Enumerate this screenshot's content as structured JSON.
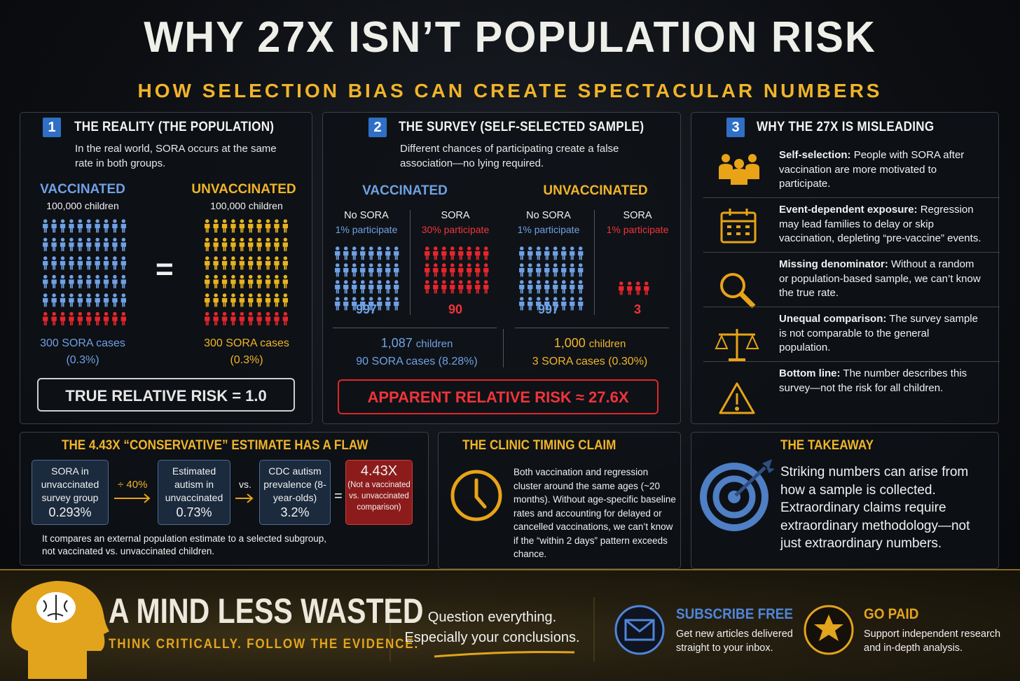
{
  "header": {
    "title": "WHY 27X ISN’T POPULATION RISK",
    "subtitle": "HOW SELECTION BIAS CAN CREATE SPECTACULAR NUMBERS"
  },
  "panel1": {
    "number": "1",
    "title": "THE REALITY (THE POPULATION)",
    "text": "In the real world, SORA occurs at the same rate in both groups.",
    "groups": [
      {
        "label": "VACCINATED",
        "count": "100,000 children",
        "cases": "300 SORA cases",
        "rate": "(0.3%)"
      },
      {
        "label": "UNVACCINATED",
        "count": "100,000 children",
        "cases": "300 SORA cases",
        "rate": "(0.3%)"
      }
    ],
    "equals": "=",
    "result": "TRUE RELATIVE RISK = 1.0"
  },
  "panel2": {
    "number": "2",
    "title": "THE SURVEY (SELF-SELECTED SAMPLE)",
    "text": "Different chances of participating create a false association—no lying required.",
    "groups": [
      {
        "label": "VACCINATED",
        "subgroups": [
          {
            "label": "No SORA",
            "rate": "1% participate",
            "count": "997"
          },
          {
            "label": "SORA",
            "rate": "30% participate",
            "count": "90"
          }
        ],
        "total": "1,087",
        "unit": "children",
        "cases": "90 SORA cases (8.28%)"
      },
      {
        "label": "UNVACCINATED",
        "subgroups": [
          {
            "label": "No SORA",
            "rate": "1% participate",
            "count": "997"
          },
          {
            "label": "SORA",
            "rate": "1% participate",
            "count": "3"
          }
        ],
        "total": "1,000",
        "unit": "children",
        "cases": "3 SORA cases (0.30%)"
      }
    ],
    "result": "APPARENT RELATIVE RISK ≈ 27.6X"
  },
  "panel3": {
    "number": "3",
    "title": "WHY THE 27X IS MISLEADING",
    "items": [
      {
        "term": "Self-selection:",
        "text": "People with SORA after vaccination are more motivated to participate."
      },
      {
        "term": "Event-dependent exposure:",
        "text": "Regression may lead families to delay or skip vaccination, depleting “pre-vaccine” events."
      },
      {
        "term": "Missing denominator:",
        "text": "Without a random or population-based sample, we can’t know the true rate."
      },
      {
        "term": "Unequal comparison:",
        "text": "The survey sample is not comparable to the general population."
      },
      {
        "term": "Bottom line:",
        "text": "The number describes this survey—not the risk for all children."
      }
    ]
  },
  "estimate": {
    "title": "THE 4.43X “CONSERVATIVE” ESTIMATE HAS A FLAW",
    "boxes": [
      {
        "label": "SORA in unvaccinated survey group",
        "value": "0.293%"
      },
      {
        "label": "Estimated autism in unvaccinated",
        "value": "0.73%"
      },
      {
        "label": "CDC autism prevalence (8-year-olds)",
        "value": "3.2%"
      },
      {
        "value": "4.43X",
        "label": "(Not a vaccinated vs. unvaccinated comparison)"
      }
    ],
    "operators": [
      "÷ 40%",
      "vs.",
      "="
    ],
    "note": "It compares an external population estimate to a selected subgroup, not vaccinated vs. unvaccinated children."
  },
  "clinic": {
    "title": "THE CLINIC TIMING CLAIM",
    "text": "Both vaccination and regression cluster around the same ages (~20 months). Without age-specific baseline rates and accounting for delayed or cancelled vaccinations, we can’t know if the “within 2 days” pattern exceeds chance."
  },
  "takeaway": {
    "title": "THE TAKEAWAY",
    "text": "Striking numbers can arise from how a sample is collected. Extraordinary claims require extraordinary methodology—not just extraordinary numbers."
  },
  "footer": {
    "brand": "A MIND LESS WASTED",
    "tagline": "THINK CRITICALLY. FOLLOW THE EVIDENCE.",
    "quote": [
      "Question everything.",
      "Especially your conclusions."
    ],
    "subscribe": {
      "title": "SUBSCRIBE FREE",
      "text": "Get new articles delivered straight to your inbox."
    },
    "paid": {
      "title": "GO PAID",
      "text": "Support independent research and in-depth analysis."
    }
  }
}
